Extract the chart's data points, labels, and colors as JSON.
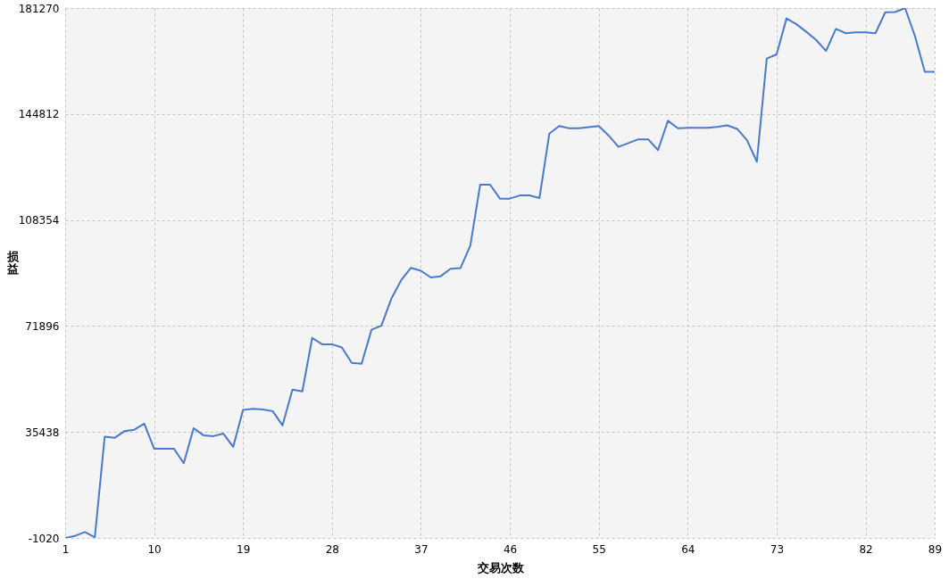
{
  "chart_data": {
    "type": "line",
    "xlabel": "交易次数",
    "ylabel": "损益",
    "x": [
      1,
      2,
      3,
      4,
      5,
      6,
      7,
      8,
      9,
      10,
      11,
      12,
      13,
      14,
      15,
      16,
      17,
      18,
      19,
      20,
      21,
      22,
      23,
      24,
      25,
      26,
      27,
      28,
      29,
      30,
      31,
      32,
      33,
      34,
      35,
      36,
      37,
      38,
      39,
      40,
      41,
      42,
      43,
      44,
      45,
      46,
      47,
      48,
      49,
      50,
      51,
      52,
      53,
      54,
      55,
      56,
      57,
      58,
      59,
      60,
      61,
      62,
      63,
      64,
      65,
      66,
      67,
      68,
      69,
      70,
      71,
      72,
      73,
      74,
      75,
      76,
      77,
      78,
      79,
      80,
      81,
      82,
      83,
      84,
      85,
      86,
      87,
      88,
      89
    ],
    "series": [
      {
        "color": "#4a7acd",
        "values": [
          -1020,
          -300,
          1000,
          -800,
          33800,
          33400,
          35700,
          36200,
          38300,
          29700,
          29700,
          29700,
          24700,
          36700,
          34300,
          34000,
          34900,
          30300,
          43000,
          43400,
          43200,
          42600,
          37700,
          50000,
          49400,
          67800,
          65600,
          65600,
          64500,
          59200,
          58900,
          70600,
          72000,
          81200,
          87600,
          91900,
          90900,
          88600,
          89000,
          91600,
          91800,
          99500,
          120500,
          120500,
          115700,
          115700,
          116800,
          116800,
          115900,
          138100,
          140700,
          139900,
          139900,
          140300,
          140700,
          137400,
          133500,
          134800,
          136100,
          136100,
          132400,
          142500,
          139900,
          140100,
          140100,
          140100,
          140400,
          140900,
          139700,
          135800,
          128400,
          163900,
          165300,
          177700,
          175700,
          173100,
          170300,
          166500,
          174100,
          172600,
          172900,
          172900,
          172600,
          179800,
          179900,
          181270,
          171600,
          159300,
          159300
        ]
      }
    ],
    "xlim": [
      1,
      89
    ],
    "xticks": [
      1,
      10,
      19,
      28,
      37,
      46,
      55,
      64,
      73,
      82,
      89
    ],
    "ylim": [
      -1020,
      181270
    ],
    "yticks": [
      -1020,
      35438,
      71896,
      108354,
      144812,
      181270
    ],
    "grid": true
  }
}
